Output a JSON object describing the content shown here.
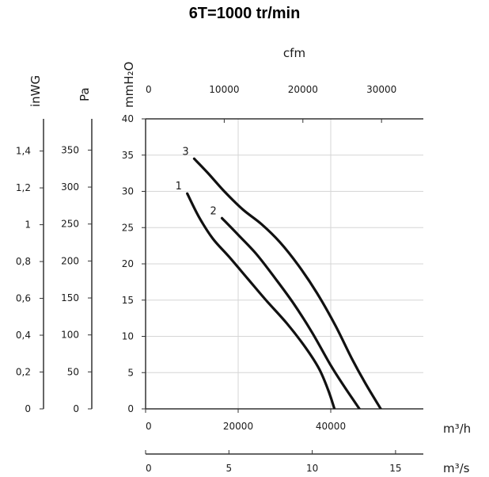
{
  "chart_data": {
    "type": "line",
    "title": "6T=1000 tr/min",
    "xlabel": "m³/h",
    "ylabel": "mmH₂O",
    "xlim": [
      0,
      60000
    ],
    "ylim": [
      0,
      40
    ],
    "grid": true,
    "x_ticks": [
      "0",
      "20000",
      "40000"
    ],
    "y_ticks": [
      "0",
      "5",
      "10",
      "15",
      "20",
      "25",
      "30",
      "35",
      "40"
    ],
    "secondary_axes": {
      "cfm": {
        "label": "cfm",
        "ticks": [
          "0",
          "10000",
          "20000",
          "30000"
        ]
      },
      "m3s": {
        "label": "m³/s",
        "ticks": [
          "0",
          "5",
          "10",
          "15"
        ]
      },
      "pa": {
        "label": "Pa",
        "ticks": [
          "0",
          "50",
          "100",
          "150",
          "200",
          "250",
          "300",
          "350"
        ]
      },
      "inwg": {
        "label": "inWG",
        "ticks": [
          "0",
          "0,2",
          "0,4",
          "0,6",
          "0,8",
          "1",
          "1,2",
          "1,4"
        ]
      }
    },
    "series": [
      {
        "name": "1",
        "points": [
          [
            9000,
            29.7
          ],
          [
            11500,
            26.5
          ],
          [
            14500,
            23.5
          ],
          [
            18000,
            21.0
          ],
          [
            22000,
            18.0
          ],
          [
            26000,
            15.0
          ],
          [
            30500,
            11.8
          ],
          [
            34500,
            8.5
          ],
          [
            37500,
            5.5
          ],
          [
            39500,
            2.5
          ],
          [
            40800,
            0
          ]
        ]
      },
      {
        "name": "2",
        "points": [
          [
            16500,
            26.3
          ],
          [
            20000,
            24.0
          ],
          [
            24000,
            21.3
          ],
          [
            28000,
            18.0
          ],
          [
            32000,
            14.5
          ],
          [
            36000,
            10.5
          ],
          [
            40000,
            6.0
          ],
          [
            43000,
            3.0
          ],
          [
            46200,
            0
          ]
        ]
      },
      {
        "name": "3",
        "points": [
          [
            10500,
            34.5
          ],
          [
            13500,
            32.5
          ],
          [
            17000,
            30.0
          ],
          [
            21000,
            27.5
          ],
          [
            25000,
            25.5
          ],
          [
            29000,
            23.0
          ],
          [
            33000,
            19.8
          ],
          [
            37000,
            16.0
          ],
          [
            41000,
            11.5
          ],
          [
            44500,
            7.0
          ],
          [
            47500,
            3.5
          ],
          [
            50800,
            0
          ]
        ]
      }
    ]
  }
}
